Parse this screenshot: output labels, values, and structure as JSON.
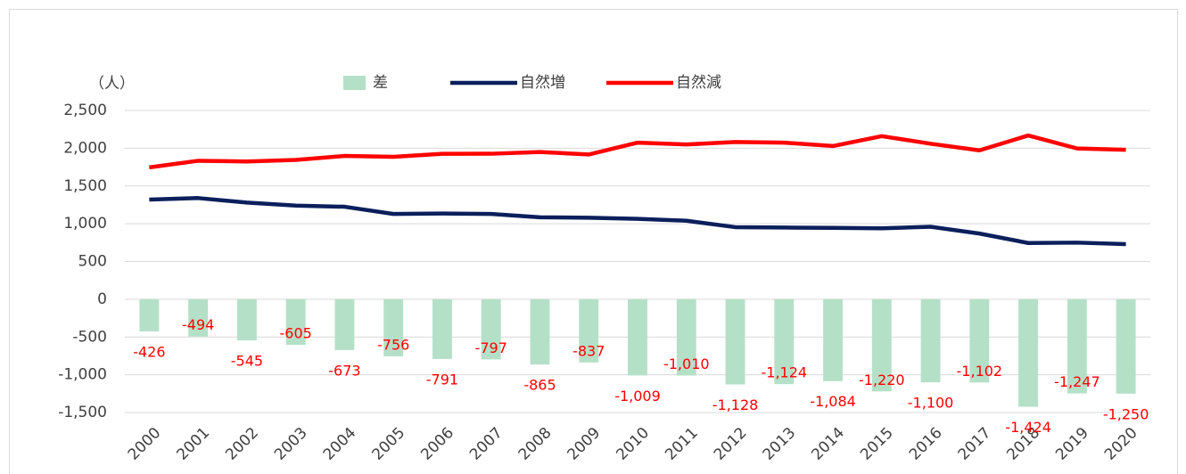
{
  "chart_data": {
    "type": "bar_line",
    "y_label": "（人）",
    "categories": [
      "2000",
      "2001",
      "2002",
      "2003",
      "2004",
      "2005",
      "2006",
      "2007",
      "2008",
      "2009",
      "2010",
      "2011",
      "2012",
      "2013",
      "2014",
      "2015",
      "2016",
      "2017",
      "2018",
      "2019",
      "2020"
    ],
    "series": [
      {
        "name": "差",
        "type": "bar",
        "color": "#b5e0c8",
        "values": [
          -426,
          -494,
          -545,
          -605,
          -673,
          -756,
          -791,
          -797,
          -865,
          -837,
          -1009,
          -1010,
          -1128,
          -1124,
          -1084,
          -1220,
          -1100,
          -1102,
          -1424,
          -1247,
          -1250
        ],
        "value_labels": [
          "-426",
          "-494",
          "-545",
          "-605",
          "-673",
          "-756",
          "-791",
          "-797",
          "-865",
          "-837",
          "-1,009",
          "-1,010",
          "-1,128",
          "-1,124",
          "-1,084",
          "-1,220",
          "-1,100",
          "-1,102",
          "-1,424",
          "-1,247",
          "-1,250"
        ]
      },
      {
        "name": "自然増",
        "type": "line",
        "color": "#0b1f5c",
        "values": [
          1320,
          1340,
          1280,
          1240,
          1225,
          1130,
          1135,
          1130,
          1085,
          1080,
          1065,
          1040,
          955,
          950,
          945,
          940,
          960,
          870,
          745,
          750,
          730
        ]
      },
      {
        "name": "自然減",
        "type": "line",
        "color": "#ff0000",
        "values": [
          1746,
          1834,
          1825,
          1845,
          1898,
          1886,
          1926,
          1927,
          1950,
          1917,
          2074,
          2050,
          2083,
          2074,
          2029,
          2160,
          2060,
          1972,
          2169,
          1997,
          1980
        ]
      }
    ],
    "label_color": "#ff0000",
    "ylim": [
      -1500,
      2500
    ],
    "yticks": [
      {
        "value": 2500,
        "label": "2,500"
      },
      {
        "value": 2000,
        "label": "2,000"
      },
      {
        "value": 1500,
        "label": "1,500"
      },
      {
        "value": 1000,
        "label": "1,000"
      },
      500,
      0,
      -500,
      {
        "value": -1000,
        "label": "-1,000"
      },
      {
        "value": -1500,
        "label": "-1,500"
      }
    ],
    "grid": true,
    "legend": "top"
  }
}
